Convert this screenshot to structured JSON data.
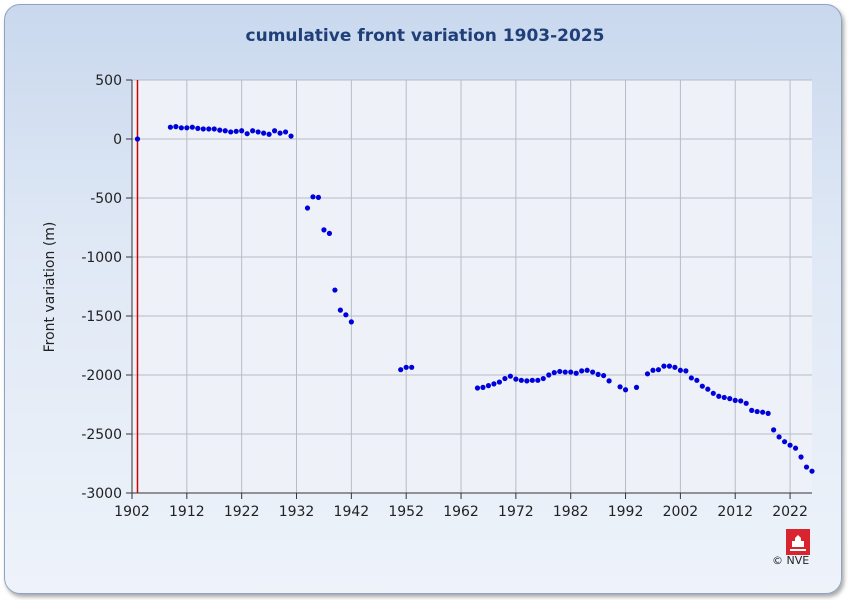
{
  "chart_data": {
    "type": "scatter",
    "title": "cumulative front variation 1903-2025",
    "ylabel": "Front variation (m)",
    "xlabel": "",
    "xlim": [
      1902,
      2026
    ],
    "ylim": [
      -3000,
      500
    ],
    "xticks": [
      1902,
      1912,
      1922,
      1932,
      1942,
      1952,
      1962,
      1972,
      1982,
      1992,
      2002,
      2012,
      2022
    ],
    "yticks": [
      500,
      0,
      -500,
      -1000,
      -1500,
      -2000,
      -2500,
      -3000
    ],
    "grid": true,
    "reference_year": 1903,
    "marker_color": "#0000dd",
    "reference_color": "#cc0000",
    "points": [
      [
        1903,
        0
      ],
      [
        1909,
        100
      ],
      [
        1910,
        105
      ],
      [
        1911,
        95
      ],
      [
        1912,
        95
      ],
      [
        1913,
        100
      ],
      [
        1914,
        90
      ],
      [
        1915,
        85
      ],
      [
        1916,
        85
      ],
      [
        1917,
        85
      ],
      [
        1918,
        75
      ],
      [
        1919,
        70
      ],
      [
        1920,
        60
      ],
      [
        1921,
        65
      ],
      [
        1922,
        70
      ],
      [
        1923,
        45
      ],
      [
        1924,
        70
      ],
      [
        1925,
        60
      ],
      [
        1926,
        50
      ],
      [
        1927,
        40
      ],
      [
        1928,
        70
      ],
      [
        1929,
        50
      ],
      [
        1930,
        60
      ],
      [
        1931,
        25
      ],
      [
        1934,
        -585
      ],
      [
        1935,
        -490
      ],
      [
        1936,
        -495
      ],
      [
        1937,
        -770
      ],
      [
        1938,
        -800
      ],
      [
        1939,
        -1280
      ],
      [
        1940,
        -1450
      ],
      [
        1941,
        -1490
      ],
      [
        1942,
        -1550
      ],
      [
        1951,
        -1955
      ],
      [
        1952,
        -1935
      ],
      [
        1953,
        -1935
      ],
      [
        1965,
        -2110
      ],
      [
        1966,
        -2105
      ],
      [
        1967,
        -2090
      ],
      [
        1968,
        -2075
      ],
      [
        1969,
        -2060
      ],
      [
        1970,
        -2030
      ],
      [
        1971,
        -2010
      ],
      [
        1972,
        -2035
      ],
      [
        1973,
        -2045
      ],
      [
        1974,
        -2050
      ],
      [
        1975,
        -2045
      ],
      [
        1976,
        -2045
      ],
      [
        1977,
        -2030
      ],
      [
        1978,
        -2000
      ],
      [
        1979,
        -1980
      ],
      [
        1980,
        -1970
      ],
      [
        1981,
        -1975
      ],
      [
        1982,
        -1975
      ],
      [
        1983,
        -1985
      ],
      [
        1984,
        -1965
      ],
      [
        1985,
        -1960
      ],
      [
        1986,
        -1975
      ],
      [
        1987,
        -1995
      ],
      [
        1988,
        -2005
      ],
      [
        1989,
        -2050
      ],
      [
        1991,
        -2100
      ],
      [
        1992,
        -2125
      ],
      [
        1994,
        -2105
      ],
      [
        1996,
        -1990
      ],
      [
        1997,
        -1960
      ],
      [
        1998,
        -1955
      ],
      [
        1999,
        -1925
      ],
      [
        2000,
        -1925
      ],
      [
        2001,
        -1935
      ],
      [
        2002,
        -1960
      ],
      [
        2003,
        -1965
      ],
      [
        2004,
        -2025
      ],
      [
        2005,
        -2045
      ],
      [
        2006,
        -2095
      ],
      [
        2007,
        -2120
      ],
      [
        2008,
        -2155
      ],
      [
        2009,
        -2180
      ],
      [
        2010,
        -2190
      ],
      [
        2011,
        -2200
      ],
      [
        2012,
        -2215
      ],
      [
        2013,
        -2220
      ],
      [
        2014,
        -2240
      ],
      [
        2015,
        -2300
      ],
      [
        2016,
        -2310
      ],
      [
        2017,
        -2315
      ],
      [
        2018,
        -2325
      ],
      [
        2019,
        -2465
      ],
      [
        2020,
        -2525
      ],
      [
        2021,
        -2565
      ],
      [
        2022,
        -2595
      ],
      [
        2023,
        -2620
      ],
      [
        2024,
        -2695
      ],
      [
        2025,
        -2780
      ],
      [
        2026,
        -2815
      ]
    ]
  },
  "credit": "© NVE"
}
